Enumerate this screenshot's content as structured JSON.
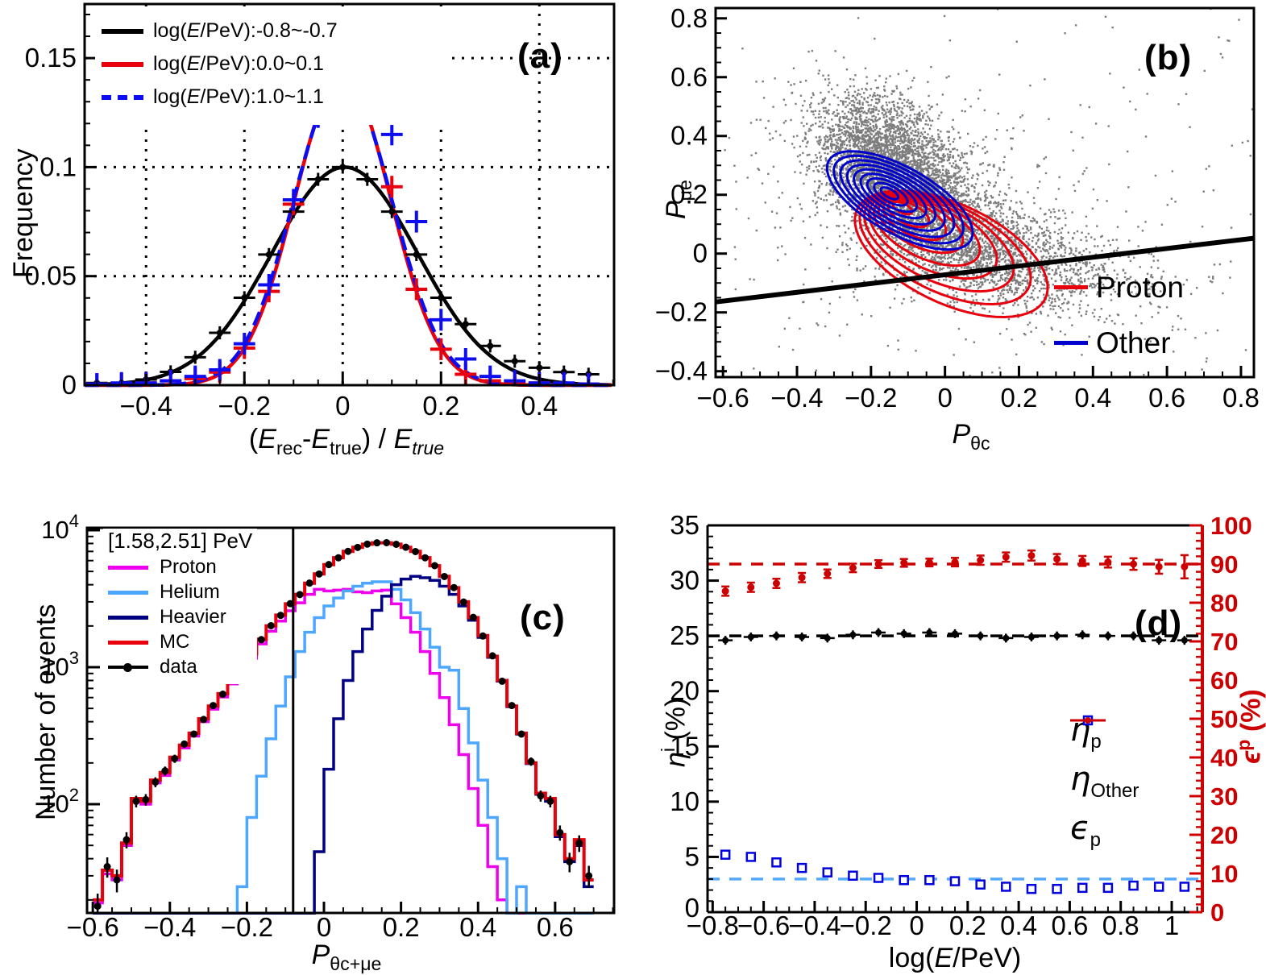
{
  "figure": {
    "background": "#ffffff"
  },
  "colors": {
    "black": "#000000",
    "red": "#e8000d",
    "blue_points": "#0d0df2",
    "blue_contour": "#0000cc",
    "magenta": "#ee00ee",
    "helium_blue": "#4da6ff",
    "navy": "#000080",
    "scatter_gray": "#7d7d7d",
    "lightblue_dash": "#55aaff",
    "red_axis": "#cc0000",
    "square_blue": "#0000e0"
  },
  "chart_data": [
    {
      "id": "a",
      "type": "line",
      "panel_label": "(a)",
      "xlabel_html": "(<i>E</i><sub>rec</sub>-<i>E</i><sub>true</sub>) / <i>E</i><sub><i>true</i></sub>",
      "ylabel": "Frequency",
      "xlim": [
        -0.525,
        0.552
      ],
      "ylim": [
        0,
        0.1748
      ],
      "xticks_major": [
        -0.4,
        -0.2,
        0,
        0.2,
        0.4
      ],
      "xtick_minor_step": 0.05,
      "yticks_major": [
        0,
        0.05,
        0.1,
        0.15
      ],
      "ytick_minor_step": 0.01,
      "grid": true,
      "legend": [
        {
          "label_html": "log(<i>E</i>/PeV):-0.8~-0.7",
          "style": "black-solid"
        },
        {
          "label_html": "log(<i>E</i>/PeV):0.0~0.1",
          "style": "red-solid"
        },
        {
          "label_html": "log(<i>E</i>/PeV):1.0~1.1",
          "style": "blue-dashed"
        }
      ],
      "curves": [
        {
          "name": "logE -0.8~-0.7",
          "color": "#000000",
          "dash": "",
          "amp": 0.1,
          "mean": 0.004,
          "sigma": 0.148
        },
        {
          "name": "logE 0.0~0.1",
          "color": "#e8000d",
          "dash": "",
          "amp": 0.142,
          "mean": 0.0,
          "sigma": 0.097
        },
        {
          "name": "logE 1.0~1.1",
          "color": "#0d0df2",
          "dash": "18 9",
          "amp": 0.14,
          "mean": 0.0,
          "sigma": 0.1
        }
      ],
      "points_x": [
        -0.5,
        -0.45,
        -0.4,
        -0.35,
        -0.3,
        -0.25,
        -0.2,
        -0.15,
        -0.1,
        -0.05,
        0,
        0.05,
        0.1,
        0.15,
        0.2,
        0.25,
        0.3,
        0.35,
        0.4,
        0.45,
        0.5
      ],
      "series": [
        {
          "name": "black",
          "color": "#000000",
          "marker": "dot",
          "ey": 0.003,
          "y": [
            0.001,
            0.001,
            0.0026,
            0.0061,
            0.0128,
            0.024,
            0.0401,
            0.0599,
            0.0796,
            0.0944,
            0.1,
            0.0944,
            0.0796,
            0.0599,
            0.0401,
            0.028,
            0.018,
            0.011,
            0.008,
            0.006,
            0.005
          ]
        },
        {
          "name": "red",
          "color": "#e8000d",
          "marker": "cross",
          "ey": 0.005,
          "y": [
            0.0005,
            0.0005,
            0.001,
            0.002,
            0.003,
            0.006,
            0.017,
            0.043,
            0.083,
            0.125,
            0.149,
            0.131,
            0.091,
            0.044,
            0.0165,
            0.005,
            0.002,
            0.001,
            0.001,
            0.0005,
            0.0005
          ]
        },
        {
          "name": "blue",
          "color": "#0d0df2",
          "marker": "cross",
          "ey": 0.005,
          "y": [
            0.0005,
            0.001,
            0.001,
            0.002,
            0.004,
            0.007,
            0.019,
            0.046,
            0.085,
            0.123,
            0.14,
            0.138,
            0.115,
            0.075,
            0.03,
            0.012,
            0.004,
            0.002,
            0.001,
            0.001,
            0.0005
          ]
        }
      ]
    },
    {
      "id": "b",
      "type": "scatter",
      "panel_label": "(b)",
      "xlabel_html": "<i>P</i><sub>θc</sub>",
      "ylabel_html": "<i>P</i><sub>μe</sub>",
      "xlim": [
        -0.62,
        0.835
      ],
      "ylim": [
        -0.42,
        0.835
      ],
      "xticks_major": [
        -0.6,
        -0.4,
        -0.2,
        0,
        0.2,
        0.4,
        0.6,
        0.8
      ],
      "xtick_minor_step": 0.05,
      "yticks_major": [
        -0.4,
        -0.2,
        0,
        0.2,
        0.4,
        0.6,
        0.8
      ],
      "ytick_minor_step": 0.05,
      "scatter_seed": 42,
      "scatter_clusters": [
        {
          "n": 2600,
          "cx": -0.16,
          "cy": 0.33,
          "sx": 0.1,
          "sy": 0.11,
          "rho": -0.35
        },
        {
          "n": 2200,
          "cx": -0.05,
          "cy": 0.15,
          "sx": 0.13,
          "sy": 0.12,
          "rho": -0.55
        },
        {
          "n": 1400,
          "cx": 0.15,
          "cy": -0.02,
          "sx": 0.18,
          "sy": 0.09,
          "rho": -0.35
        },
        {
          "n": 500,
          "cx": 0.05,
          "cy": 0.1,
          "sx": 0.35,
          "sy": 0.22,
          "rho": -0.4
        }
      ],
      "scatter_uniform_n": 130,
      "contours_proton": {
        "color": "#e8000d",
        "rot_deg": -35,
        "n": 9,
        "cx0": -0.115,
        "dcx": 0.0165,
        "cy0": 0.155,
        "dcy": -0.0195,
        "rx0": 0.03,
        "drx": 0.0335,
        "ry0": 0.015,
        "dry": 0.018
      },
      "contours_other": {
        "color": "#0000cc",
        "rot_deg": -38,
        "n": 9,
        "cx0": -0.15,
        "dcx": 0.0035,
        "cy0": 0.205,
        "dcy": -0.003,
        "rx0": 0.028,
        "drx": 0.026,
        "ry0": 0.013,
        "dry": 0.0115
      },
      "cut_line": {
        "x1": -0.62,
        "y1": -0.1644,
        "x2": 0.835,
        "y2": 0.0524
      },
      "legend": [
        {
          "label": "Proton",
          "color": "#e8000d"
        },
        {
          "label": "Other",
          "color": "#0000cc"
        }
      ]
    },
    {
      "id": "c",
      "type": "histogram",
      "panel_label": "(c)",
      "energy_range_label": "[1.58,2.51] PeV",
      "xlabel_html": "<i>P</i><sub>θc+μe</sub>",
      "ylabel": "Number of events",
      "xlim": [
        -0.615,
        0.753
      ],
      "ylim_log": [
        16,
        10420
      ],
      "xticks_major": [
        -0.6,
        -0.4,
        -0.2,
        0,
        0.2,
        0.4,
        0.6
      ],
      "xtick_minor_step": 0.05,
      "ytick_decades": [
        100,
        1000,
        10000
      ],
      "cut_line_x": -0.08,
      "bin_start": -0.6,
      "bin_width": 0.025,
      "histograms": [
        {
          "name": "Proton",
          "color": "#ee00ee",
          "values": [
            19,
            31,
            28,
            50,
            105,
            100,
            143,
            162,
            210,
            257,
            314,
            400,
            494,
            606,
            755,
            920,
            1160,
            1480,
            1830,
            2170,
            2580,
            2950,
            3400,
            3700,
            3600,
            3650,
            3700,
            3550,
            3500,
            3600,
            3650,
            2900,
            2300,
            1800,
            1300,
            900,
            600,
            380,
            230,
            130,
            70,
            35,
            20,
            0,
            0,
            0,
            0,
            0,
            0,
            0,
            0,
            0
          ]
        },
        {
          "name": "Helium",
          "color": "#4da6ff",
          "values": [
            0,
            0,
            0,
            0,
            0,
            0,
            0,
            0,
            0,
            0,
            0,
            0,
            0,
            0,
            0,
            25,
            80,
            160,
            300,
            520,
            850,
            1300,
            1800,
            2300,
            2800,
            3200,
            3600,
            3900,
            4100,
            4200,
            4200,
            3700,
            3100,
            2500,
            1900,
            1400,
            1000,
            950,
            500,
            280,
            150,
            80,
            40,
            0,
            25,
            0,
            0,
            0,
            0,
            0,
            0,
            0
          ]
        },
        {
          "name": "Heavier",
          "color": "#000080",
          "values": [
            0,
            0,
            0,
            0,
            0,
            0,
            0,
            0,
            0,
            0,
            0,
            0,
            0,
            0,
            0,
            0,
            0,
            0,
            0,
            0,
            0,
            0,
            0,
            45,
            180,
            420,
            800,
            1300,
            1900,
            2600,
            3300,
            4000,
            4400,
            4600,
            4500,
            4300,
            3900,
            3400,
            2800,
            2200,
            1650,
            1180,
            790,
            515,
            325,
            198,
            118,
            105,
            58,
            38,
            50,
            25
          ]
        },
        {
          "name": "MC",
          "color": "#e8000d",
          "values": [
            20,
            33,
            30,
            52,
            110,
            105,
            150,
            170,
            220,
            270,
            330,
            420,
            520,
            640,
            800,
            980,
            1250,
            1600,
            2000,
            2400,
            2900,
            3400,
            4100,
            4800,
            5600,
            6300,
            7000,
            7500,
            7900,
            8100,
            8100,
            7900,
            7500,
            7000,
            6300,
            5500,
            4600,
            3800,
            3000,
            2300,
            1700,
            1200,
            800,
            520,
            330,
            200,
            120,
            110,
            60,
            40,
            55,
            28
          ]
        }
      ],
      "data_points": {
        "name": "data",
        "color": "#000000",
        "values": [
          18,
          35,
          28,
          55,
          105,
          108,
          145,
          175,
          215,
          275,
          325,
          415,
          525,
          635,
          805,
          975,
          1260,
          1590,
          2010,
          2390,
          2910,
          3390,
          4110,
          4790,
          5610,
          6290,
          7010,
          7490,
          7910,
          8090,
          8110,
          7890,
          7510,
          6990,
          6290,
          5510,
          4590,
          3810,
          2990,
          2310,
          1690,
          1210,
          790,
          525,
          325,
          205,
          115,
          105,
          62,
          38,
          52,
          30
        ]
      },
      "legend": [
        {
          "label": "Proton",
          "style": "magenta"
        },
        {
          "label": "Helium",
          "style": "helium"
        },
        {
          "label": "Heavier",
          "style": "navy"
        },
        {
          "label": "MC",
          "style": "mc"
        },
        {
          "label": "data",
          "style": "data"
        }
      ]
    },
    {
      "id": "d",
      "type": "scatter",
      "panel_label": "(d)",
      "xlabel_html": "log(<i>E</i>/PeV)",
      "ylabel_left_html": "<i>η</i><sup>i</sup> (%)",
      "ylabel_right_html": "<i>ϵ</i><sup>p</sup> (%)",
      "xlim": [
        -0.82,
        1.12
      ],
      "ylim_left": [
        0,
        35
      ],
      "ylim_right": [
        0,
        100
      ],
      "xticks_major": [
        -0.8,
        -0.6,
        -0.4,
        -0.2,
        0,
        0.2,
        0.4,
        0.6,
        0.8,
        1.0
      ],
      "xtick_minor_step": 0.05,
      "yticks_left_major": [
        0,
        5,
        10,
        15,
        20,
        25,
        30,
        35
      ],
      "ytick_left_minor_step": 1,
      "yticks_right_major": [
        0,
        10,
        20,
        30,
        40,
        50,
        60,
        70,
        80,
        90,
        100
      ],
      "ytick_right_minor_step": 2,
      "ref_lines": [
        {
          "axis": "left",
          "value": 25,
          "color": "#000000"
        },
        {
          "axis": "right",
          "value": 90,
          "color": "#cc0000"
        },
        {
          "axis": "left",
          "value": 3,
          "color": "#55aaff"
        }
      ],
      "x": [
        -0.75,
        -0.65,
        -0.55,
        -0.45,
        -0.35,
        -0.25,
        -0.15,
        -0.05,
        0.05,
        0.15,
        0.25,
        0.35,
        0.45,
        0.55,
        0.65,
        0.75,
        0.85,
        0.95,
        1.05
      ],
      "eta_p": {
        "color": "#000000",
        "err": 0.4,
        "values": [
          24.6,
          24.9,
          25.0,
          24.9,
          24.8,
          25.1,
          25.3,
          25.2,
          25.3,
          25.2,
          25.0,
          24.8,
          24.9,
          25.0,
          25.1,
          25.0,
          25.0,
          24.6,
          24.6
        ]
      },
      "eta_other": {
        "color": "#0000e0",
        "values": [
          5.2,
          5.0,
          4.5,
          4.0,
          3.6,
          3.3,
          3.1,
          2.9,
          2.9,
          2.8,
          2.5,
          2.3,
          2.1,
          2.1,
          2.2,
          2.2,
          2.4,
          2.3,
          2.3
        ]
      },
      "epsilon_p": {
        "color": "#cc0000",
        "values": [
          83,
          84,
          85,
          86.5,
          87.5,
          89,
          90,
          90.3,
          90.4,
          90.5,
          91,
          91.8,
          92.2,
          91.3,
          90.8,
          90.5,
          90,
          89.3,
          89.3
        ],
        "errors": [
          1.2,
          1.2,
          1.2,
          1.2,
          1.1,
          1.1,
          1.0,
          1.0,
          1.0,
          1.1,
          1.2,
          1.2,
          1.3,
          1.3,
          1.3,
          1.4,
          1.5,
          1.8,
          3.0
        ]
      },
      "legend": [
        {
          "label_html": "<i>η</i><sub>p</sub>",
          "marker": "black-dot"
        },
        {
          "label_html": "<i>η</i><sub>Other</sub>",
          "marker": "blue-square"
        },
        {
          "label_html": "<i>ϵ</i><sub>p</sub>",
          "marker": "red-dot"
        }
      ]
    }
  ]
}
